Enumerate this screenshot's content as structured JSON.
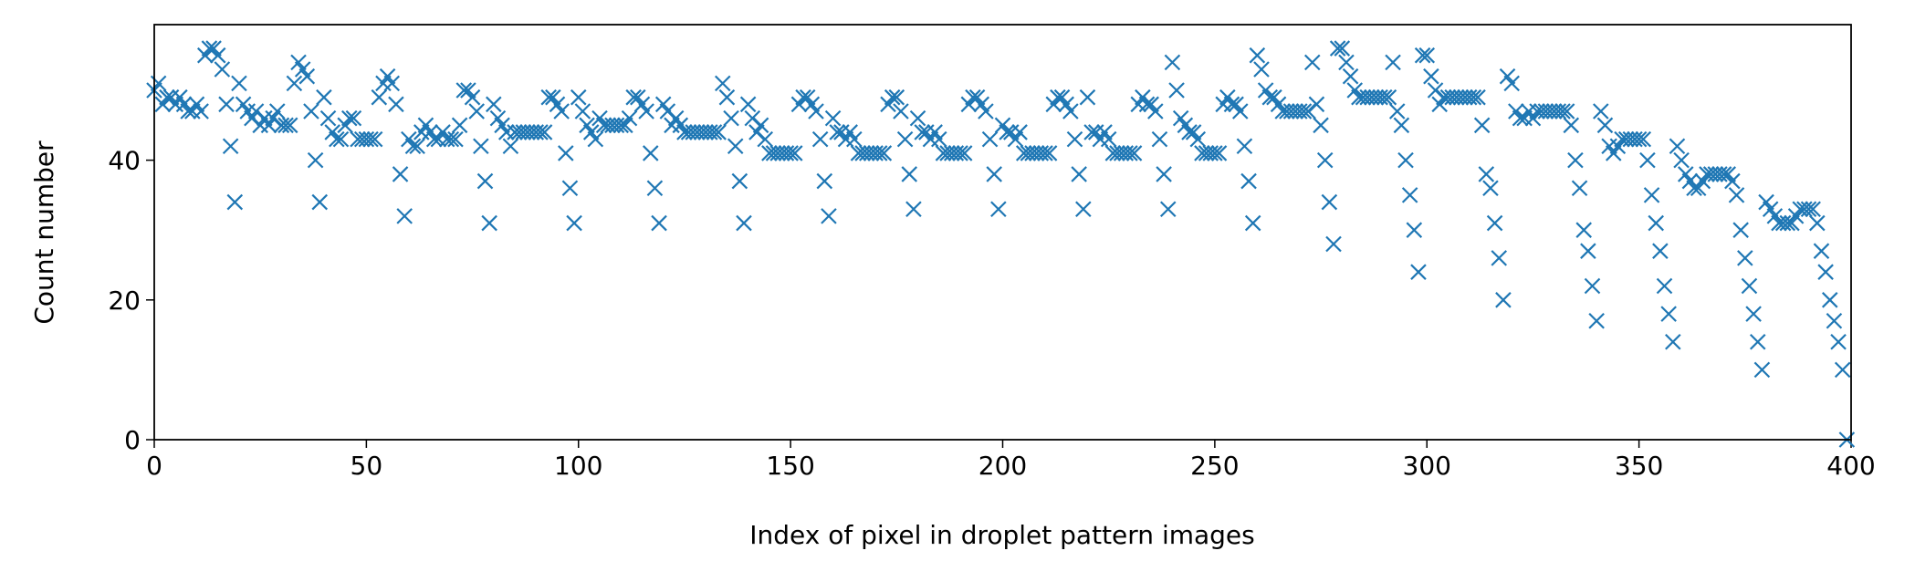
{
  "chart_data": {
    "type": "scatter",
    "xlabel": "Index of pixel in droplet pattern images",
    "ylabel": "Count number",
    "color": "#1f77b4",
    "marker": "x",
    "xlim": [
      0,
      400
    ],
    "ylim": [
      0,
      59.4
    ],
    "xticks": [
      0,
      50,
      100,
      150,
      200,
      250,
      300,
      350,
      400
    ],
    "yticks": [
      0,
      20,
      40
    ],
    "x": [
      0,
      1,
      2,
      3,
      4,
      5,
      6,
      7,
      8,
      9,
      10,
      11,
      12,
      13,
      14,
      15,
      16,
      17,
      18,
      19,
      20,
      21,
      22,
      23,
      24,
      25,
      26,
      27,
      28,
      29,
      30,
      31,
      32,
      33,
      34,
      35,
      36,
      37,
      38,
      39,
      40,
      41,
      42,
      43,
      44,
      45,
      46,
      47,
      48,
      49,
      50,
      51,
      52,
      53,
      54,
      55,
      56,
      57,
      58,
      59,
      60,
      61,
      62,
      63,
      64,
      65,
      66,
      67,
      68,
      69,
      70,
      71,
      72,
      73,
      74,
      75,
      76,
      77,
      78,
      79,
      80,
      81,
      82,
      83,
      84,
      85,
      86,
      87,
      88,
      89,
      90,
      91,
      92,
      93,
      94,
      95,
      96,
      97,
      98,
      99,
      100,
      101,
      102,
      103,
      104,
      105,
      106,
      107,
      108,
      109,
      110,
      111,
      112,
      113,
      114,
      115,
      116,
      117,
      118,
      119,
      120,
      121,
      122,
      123,
      124,
      125,
      126,
      127,
      128,
      129,
      130,
      131,
      132,
      133,
      134,
      135,
      136,
      137,
      138,
      139,
      140,
      141,
      142,
      143,
      144,
      145,
      146,
      147,
      148,
      149,
      150,
      151,
      152,
      153,
      154,
      155,
      156,
      157,
      158,
      159,
      160,
      161,
      162,
      163,
      164,
      165,
      166,
      167,
      168,
      169,
      170,
      171,
      172,
      173,
      174,
      175,
      176,
      177,
      178,
      179,
      180,
      181,
      182,
      183,
      184,
      185,
      186,
      187,
      188,
      189,
      190,
      191,
      192,
      193,
      194,
      195,
      196,
      197,
      198,
      199,
      200,
      201,
      202,
      203,
      204,
      205,
      206,
      207,
      208,
      209,
      210,
      211,
      212,
      213,
      214,
      215,
      216,
      217,
      218,
      219,
      220,
      221,
      222,
      223,
      224,
      225,
      226,
      227,
      228,
      229,
      230,
      231,
      232,
      233,
      234,
      235,
      236,
      237,
      238,
      239,
      240,
      241,
      242,
      243,
      244,
      245,
      246,
      247,
      248,
      249,
      250,
      251,
      252,
      253,
      254,
      255,
      256,
      257,
      258,
      259,
      260,
      261,
      262,
      263,
      264,
      265,
      266,
      267,
      268,
      269,
      270,
      271,
      272,
      273,
      274,
      275,
      276,
      277,
      278,
      279,
      280,
      281,
      282,
      283,
      284,
      285,
      286,
      287,
      288,
      289,
      290,
      291,
      292,
      293,
      294,
      295,
      296,
      297,
      298,
      299,
      300,
      301,
      302,
      303,
      304,
      305,
      306,
      307,
      308,
      309,
      310,
      311,
      312,
      313,
      314,
      315,
      316,
      317,
      318,
      319,
      320,
      321,
      322,
      323,
      324,
      325,
      326,
      327,
      328,
      329,
      330,
      331,
      332,
      333,
      334,
      335,
      336,
      337,
      338,
      339,
      340,
      341,
      342,
      343,
      344,
      345,
      346,
      347,
      348,
      349,
      350,
      351,
      352,
      353,
      354,
      355,
      356,
      357,
      358,
      359,
      360,
      361,
      362,
      363,
      364,
      365,
      366,
      367,
      368,
      369,
      370,
      371,
      372,
      373,
      374,
      375,
      376,
      377,
      378,
      379,
      380,
      381,
      382,
      383,
      384,
      385,
      386,
      387,
      388,
      389,
      390,
      391,
      392,
      393,
      394,
      395,
      396,
      397,
      398,
      399
    ],
    "values": [
      50,
      51,
      48,
      49,
      49,
      48,
      49,
      48,
      47,
      47,
      48,
      47,
      55,
      56,
      56,
      55,
      53,
      48,
      42,
      34,
      51,
      48,
      47,
      46,
      47,
      45,
      46,
      45,
      46,
      47,
      45,
      45,
      45,
      51,
      54,
      53,
      52,
      47,
      40,
      34,
      49,
      46,
      44,
      43,
      43,
      45,
      46,
      46,
      43,
      43,
      43,
      43,
      43,
      49,
      51,
      52,
      51,
      48,
      38,
      32,
      43,
      42,
      42,
      44,
      45,
      44,
      43,
      43,
      44,
      43,
      43,
      43,
      45,
      50,
      50,
      49,
      47,
      42,
      37,
      31,
      48,
      46,
      45,
      44,
      42,
      44,
      44,
      44,
      44,
      44,
      44,
      44,
      44,
      49,
      49,
      48,
      47,
      41,
      36,
      31,
      49,
      47,
      45,
      44,
      43,
      46,
      45,
      45,
      45,
      45,
      45,
      45,
      46,
      49,
      49,
      48,
      47,
      41,
      36,
      31,
      48,
      47,
      45,
      46,
      45,
      44,
      44,
      44,
      44,
      44,
      44,
      44,
      44,
      44,
      51,
      49,
      46,
      42,
      37,
      31,
      48,
      46,
      44,
      45,
      43,
      41,
      41,
      41,
      41,
      41,
      41,
      41,
      48,
      49,
      49,
      48,
      47,
      43,
      37,
      32,
      46,
      44,
      44,
      43,
      44,
      43,
      41,
      41,
      41,
      41,
      41,
      41,
      41,
      48,
      49,
      49,
      47,
      43,
      38,
      33,
      46,
      44,
      44,
      43,
      44,
      43,
      41,
      41,
      41,
      41,
      41,
      41,
      48,
      49,
      49,
      48,
      47,
      43,
      38,
      33,
      45,
      44,
      44,
      43,
      44,
      41,
      41,
      41,
      41,
      41,
      41,
      41,
      48,
      49,
      49,
      48,
      47,
      43,
      38,
      33,
      49,
      44,
      44,
      43,
      44,
      43,
      41,
      41,
      41,
      41,
      41,
      41,
      48,
      49,
      48,
      48,
      47,
      43,
      38,
      33,
      54,
      50,
      46,
      45,
      44,
      44,
      43,
      41,
      41,
      41,
      41,
      41,
      48,
      49,
      48,
      48,
      47,
      42,
      37,
      31,
      55,
      53,
      50,
      49,
      49,
      48,
      47,
      47,
      47,
      47,
      47,
      47,
      47,
      54,
      48,
      45,
      40,
      34,
      28,
      56,
      56,
      54,
      52,
      50,
      49,
      49,
      49,
      49,
      49,
      49,
      49,
      49,
      54,
      47,
      45,
      40,
      35,
      30,
      24,
      55,
      55,
      52,
      50,
      48,
      49,
      49,
      49,
      49,
      49,
      49,
      49,
      49,
      49,
      45,
      38,
      36,
      31,
      26,
      20,
      52,
      51,
      47,
      46,
      46,
      47,
      46,
      47,
      47,
      47,
      47,
      47,
      47,
      47,
      47,
      45,
      40,
      36,
      30,
      27,
      22,
      17,
      47,
      45,
      42,
      41,
      42,
      43,
      43,
      43,
      43,
      43,
      43,
      40,
      35,
      31,
      27,
      22,
      18,
      14,
      42,
      40,
      38,
      37,
      36,
      36,
      37,
      38,
      38,
      38,
      38,
      38,
      38,
      37,
      35,
      30,
      26,
      22,
      18,
      14,
      10,
      34,
      33,
      32,
      31,
      31,
      31,
      31,
      32,
      33,
      33,
      33,
      33,
      31,
      27,
      24,
      20,
      17,
      14,
      10,
      0
    ]
  }
}
